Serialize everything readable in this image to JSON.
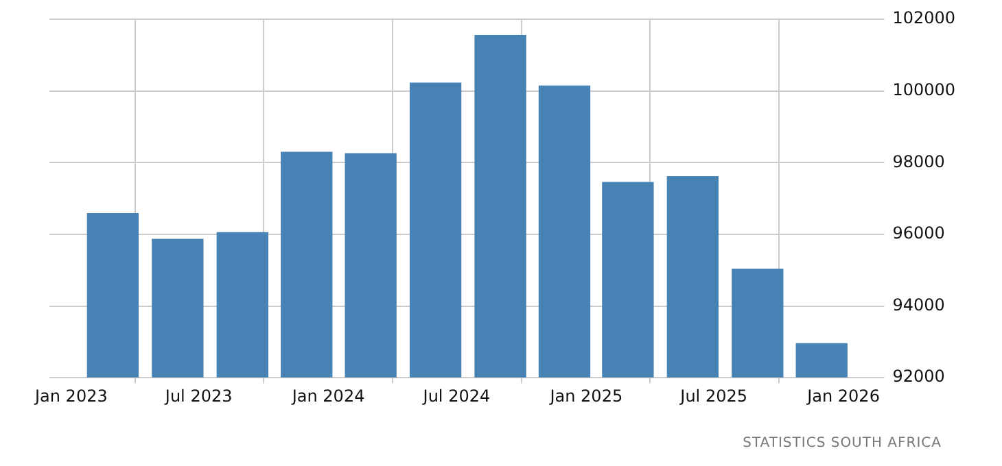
{
  "chart_data": {
    "type": "bar",
    "x": [
      "2023-03",
      "2023-06",
      "2023-09",
      "2023-12",
      "2024-03",
      "2024-06",
      "2024-09",
      "2024-12",
      "2025-03",
      "2025-06",
      "2025-09",
      "2025-12"
    ],
    "values": [
      96580,
      95860,
      96050,
      98290,
      98250,
      100220,
      101550,
      100140,
      97450,
      97610,
      95030,
      92950
    ],
    "color": "#4682b4",
    "xlim": [
      "2022-12-01",
      "2026-02-20"
    ],
    "xticks": [
      {
        "value": "2023-01",
        "label": "Jan 2023"
      },
      {
        "value": "2023-07",
        "label": "Jul 2023"
      },
      {
        "value": "2024-01",
        "label": "Jan 2024"
      },
      {
        "value": "2024-07",
        "label": "Jul 2024"
      },
      {
        "value": "2025-01",
        "label": "Jan 2025"
      },
      {
        "value": "2025-07",
        "label": "Jul 2025"
      },
      {
        "value": "2026-01",
        "label": "Jan 2026"
      }
    ],
    "ylim": [
      92000,
      102000
    ],
    "yticks": [
      92000,
      94000,
      96000,
      98000,
      100000,
      102000
    ],
    "grid": true,
    "annotations": [
      "STATISTICS SOUTH AFRICA"
    ]
  }
}
